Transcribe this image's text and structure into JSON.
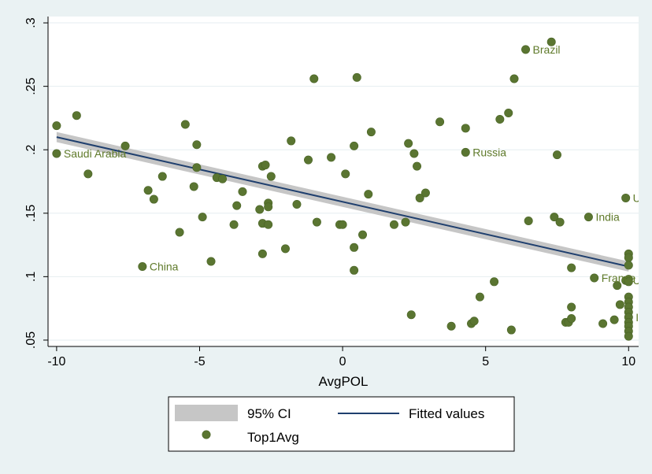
{
  "chart_data": {
    "type": "scatter",
    "xlabel": "AvgPOL",
    "ylabel": "",
    "xlim": [
      -10.3,
      10.35
    ],
    "ylim": [
      0.045,
      0.305
    ],
    "xticks": [
      -10,
      -5,
      0,
      5,
      10
    ],
    "xtick_labels": [
      "-10",
      "-5",
      "0",
      "5",
      "10"
    ],
    "yticks": [
      0.05,
      0.1,
      0.15,
      0.2,
      0.25,
      0.3
    ],
    "ytick_labels": [
      ".05",
      ".1",
      ".15",
      ".2",
      ".25",
      ".3"
    ],
    "grid": "horizontal",
    "legend_position": "bottom",
    "colors": {
      "marker": "#5a7531",
      "marker_stroke": "#4a6426",
      "label": "#5f7a2a",
      "fit_line": "#1f3f6e",
      "ci_band": "#c6c6c6",
      "plot_bg": "#ffffff",
      "outer_bg": "#eaf2f3",
      "grid": "#e6eef0"
    },
    "ci_band": {
      "x": [
        -10,
        10
      ],
      "lower": [
        0.206,
        0.104
      ],
      "upper": [
        0.214,
        0.112
      ]
    },
    "fitted": {
      "x": [
        -10,
        10
      ],
      "y": [
        0.21,
        0.108
      ]
    },
    "series": [
      {
        "name": "Top1Avg",
        "points": [
          [
            -10,
            0.219
          ],
          [
            -10,
            0.197
          ],
          [
            -9.3,
            0.227
          ],
          [
            -8.9,
            0.181
          ],
          [
            -7.6,
            0.203
          ],
          [
            -7.0,
            0.108
          ],
          [
            -6.8,
            0.168
          ],
          [
            -6.6,
            0.161
          ],
          [
            -6.3,
            0.179
          ],
          [
            -5.7,
            0.135
          ],
          [
            -5.5,
            0.22
          ],
          [
            -5.2,
            0.171
          ],
          [
            -5.1,
            0.204
          ],
          [
            -5.1,
            0.186
          ],
          [
            -4.9,
            0.147
          ],
          [
            -4.6,
            0.112
          ],
          [
            -4.4,
            0.178
          ],
          [
            -4.2,
            0.177
          ],
          [
            -3.8,
            0.141
          ],
          [
            -3.7,
            0.156
          ],
          [
            -3.5,
            0.167
          ],
          [
            -2.9,
            0.153
          ],
          [
            -2.8,
            0.187
          ],
          [
            -2.8,
            0.142
          ],
          [
            -2.8,
            0.118
          ],
          [
            -2.7,
            0.188
          ],
          [
            -2.6,
            0.158
          ],
          [
            -2.6,
            0.155
          ],
          [
            -2.6,
            0.141
          ],
          [
            -2.5,
            0.179
          ],
          [
            -2.0,
            0.122
          ],
          [
            -1.8,
            0.207
          ],
          [
            -1.6,
            0.157
          ],
          [
            -1.2,
            0.192
          ],
          [
            -1.0,
            0.256
          ],
          [
            -0.9,
            0.143
          ],
          [
            -0.4,
            0.194
          ],
          [
            -0.1,
            0.141
          ],
          [
            0.0,
            0.141
          ],
          [
            0.1,
            0.181
          ],
          [
            0.4,
            0.203
          ],
          [
            0.4,
            0.123
          ],
          [
            0.4,
            0.105
          ],
          [
            0.5,
            0.257
          ],
          [
            0.7,
            0.133
          ],
          [
            0.9,
            0.165
          ],
          [
            1.0,
            0.214
          ],
          [
            1.8,
            0.141
          ],
          [
            2.2,
            0.143
          ],
          [
            2.3,
            0.205
          ],
          [
            2.4,
            0.07
          ],
          [
            2.5,
            0.197
          ],
          [
            2.6,
            0.187
          ],
          [
            2.7,
            0.162
          ],
          [
            2.9,
            0.166
          ],
          [
            3.4,
            0.222
          ],
          [
            3.8,
            0.061
          ],
          [
            4.3,
            0.198
          ],
          [
            4.3,
            0.217
          ],
          [
            4.5,
            0.063
          ],
          [
            4.6,
            0.065
          ],
          [
            4.8,
            0.084
          ],
          [
            5.3,
            0.096
          ],
          [
            5.5,
            0.224
          ],
          [
            5.8,
            0.229
          ],
          [
            5.9,
            0.058
          ],
          [
            6.0,
            0.256
          ],
          [
            6.4,
            0.279
          ],
          [
            6.5,
            0.144
          ],
          [
            7.3,
            0.285
          ],
          [
            7.4,
            0.147
          ],
          [
            7.5,
            0.196
          ],
          [
            7.6,
            0.143
          ],
          [
            7.8,
            0.064
          ],
          [
            7.9,
            0.064
          ],
          [
            8.0,
            0.107
          ],
          [
            8.0,
            0.076
          ],
          [
            8.0,
            0.067
          ],
          [
            8.6,
            0.147
          ],
          [
            8.8,
            0.099
          ],
          [
            9.1,
            0.063
          ],
          [
            9.5,
            0.066
          ],
          [
            9.6,
            0.093
          ],
          [
            9.7,
            0.078
          ],
          [
            9.9,
            0.162
          ],
          [
            9.9,
            0.097
          ],
          [
            10,
            0.118
          ],
          [
            10,
            0.115
          ],
          [
            10,
            0.109
          ],
          [
            10,
            0.098
          ],
          [
            10,
            0.096
          ],
          [
            10,
            0.084
          ],
          [
            10,
            0.08
          ],
          [
            10,
            0.076
          ],
          [
            10,
            0.072
          ],
          [
            10,
            0.068
          ],
          [
            10,
            0.064
          ],
          [
            10,
            0.061
          ],
          [
            10,
            0.057
          ],
          [
            10,
            0.053
          ]
        ]
      }
    ],
    "point_labels": [
      {
        "text": "Brazil",
        "x": 6.4,
        "y": 0.279
      },
      {
        "text": "Saudi Arabia",
        "x": -10,
        "y": 0.197
      },
      {
        "text": "Russia",
        "x": 4.3,
        "y": 0.198
      },
      {
        "text": "USA",
        "x": 9.9,
        "y": 0.162
      },
      {
        "text": "India",
        "x": 8.6,
        "y": 0.147
      },
      {
        "text": "China",
        "x": -7.0,
        "y": 0.108
      },
      {
        "text": "France",
        "x": 8.8,
        "y": 0.099
      },
      {
        "text": "United Kingdom",
        "x": 9.9,
        "y": 0.097
      },
      {
        "text": "Italy",
        "x": 10,
        "y": 0.068
      }
    ],
    "legend": [
      {
        "label": "95% CI",
        "kind": "band"
      },
      {
        "label": "Fitted values",
        "kind": "line"
      },
      {
        "label": "Top1Avg",
        "kind": "marker"
      }
    ]
  }
}
